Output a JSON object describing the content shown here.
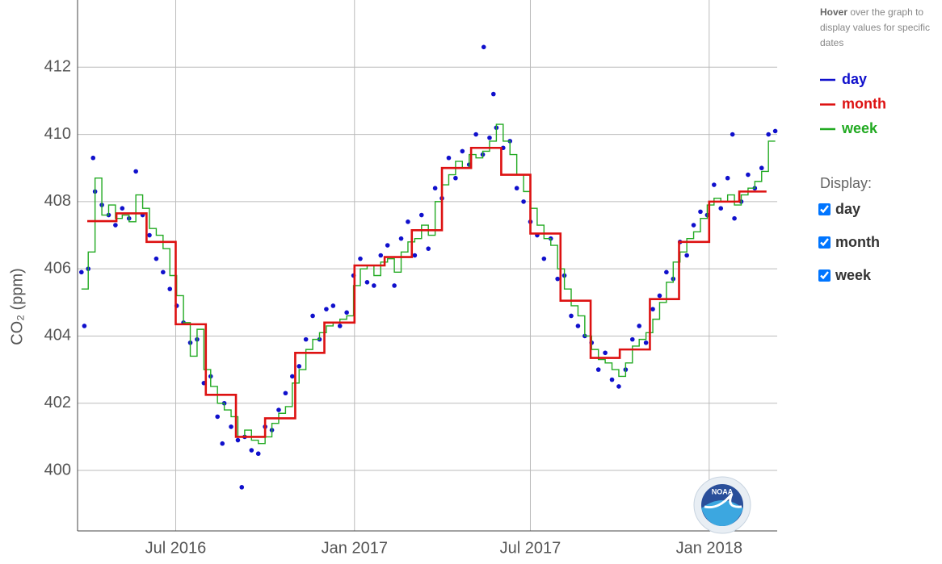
{
  "chart_data": {
    "type": "line",
    "y_label": "CO₂ (ppm)",
    "hint": {
      "bold": "Hover",
      "text": "over the graph to display values for specific dates"
    },
    "display_label": "Display:",
    "grid": true,
    "ylim": [
      398.2,
      414
    ],
    "yticks": [
      400,
      402,
      404,
      406,
      408,
      410,
      412
    ],
    "xlim": [
      "2016-03-22",
      "2018-03-12"
    ],
    "xticks": [
      {
        "value": "2016-07-01",
        "label": "Jul 2016"
      },
      {
        "value": "2017-01-01",
        "label": "Jan 2017"
      },
      {
        "value": "2017-07-01",
        "label": "Jul 2017"
      },
      {
        "value": "2018-01-01",
        "label": "Jan 2018"
      }
    ],
    "series": [
      {
        "name": "day",
        "color": "#1010cc",
        "style": "dots",
        "x": [
          "2016-03-26",
          "2016-04-02",
          "2016-04-09",
          "2016-04-16",
          "2016-04-23",
          "2016-04-30",
          "2016-05-07",
          "2016-05-14",
          "2016-05-21",
          "2016-05-28",
          "2016-06-04",
          "2016-06-11",
          "2016-06-18",
          "2016-06-25",
          "2016-07-02",
          "2016-07-09",
          "2016-07-16",
          "2016-07-23",
          "2016-07-30",
          "2016-08-06",
          "2016-08-13",
          "2016-08-20",
          "2016-08-27",
          "2016-09-03",
          "2016-09-10",
          "2016-09-17",
          "2016-09-24",
          "2016-10-01",
          "2016-10-08",
          "2016-10-15",
          "2016-10-22",
          "2016-10-29",
          "2016-11-05",
          "2016-11-12",
          "2016-11-19",
          "2016-11-26",
          "2016-12-03",
          "2016-12-10",
          "2016-12-17",
          "2016-12-24",
          "2016-12-31",
          "2017-01-07",
          "2017-01-14",
          "2017-01-21",
          "2017-01-28",
          "2017-02-04",
          "2017-02-11",
          "2017-02-18",
          "2017-02-25",
          "2017-03-04",
          "2017-03-11",
          "2017-03-18",
          "2017-03-25",
          "2017-04-01",
          "2017-04-08",
          "2017-04-15",
          "2017-04-22",
          "2017-04-29",
          "2017-05-06",
          "2017-05-13",
          "2017-05-20",
          "2017-05-27",
          "2017-06-03",
          "2017-06-10",
          "2017-06-17",
          "2017-06-24",
          "2017-07-01",
          "2017-07-08",
          "2017-07-15",
          "2017-07-22",
          "2017-07-29",
          "2017-08-05",
          "2017-08-12",
          "2017-08-19",
          "2017-08-26",
          "2017-09-02",
          "2017-09-09",
          "2017-09-16",
          "2017-09-23",
          "2017-09-30",
          "2017-10-07",
          "2017-10-14",
          "2017-10-21",
          "2017-10-28",
          "2017-11-04",
          "2017-11-11",
          "2017-11-18",
          "2017-11-25",
          "2017-12-02",
          "2017-12-09",
          "2017-12-16",
          "2017-12-23",
          "2017-12-30",
          "2018-01-06",
          "2018-01-13",
          "2018-01-20",
          "2018-01-27",
          "2018-02-03",
          "2018-02-10",
          "2018-02-17",
          "2018-02-24",
          "2018-03-03",
          "2016-03-29",
          "2016-04-07",
          "2016-08-18",
          "2016-09-07",
          "2017-05-14",
          "2017-05-24",
          "2018-01-25",
          "2018-03-10"
        ],
        "values": [
          405.9,
          406.0,
          408.3,
          407.9,
          407.6,
          407.3,
          407.8,
          407.5,
          408.9,
          407.6,
          407.0,
          406.3,
          405.9,
          405.4,
          404.9,
          404.4,
          403.8,
          403.9,
          402.6,
          402.8,
          401.6,
          402.0,
          401.3,
          400.9,
          401.0,
          400.6,
          400.5,
          401.3,
          401.2,
          401.8,
          402.3,
          402.8,
          403.1,
          403.9,
          404.6,
          403.9,
          404.8,
          404.9,
          404.3,
          404.7,
          405.8,
          406.3,
          405.6,
          405.5,
          406.4,
          406.7,
          405.5,
          406.9,
          407.4,
          406.4,
          407.6,
          406.6,
          408.4,
          408.1,
          409.3,
          408.7,
          409.5,
          409.1,
          410.0,
          409.4,
          409.9,
          410.2,
          409.6,
          409.8,
          408.4,
          408.0,
          407.4,
          407.0,
          406.3,
          406.9,
          405.7,
          405.8,
          404.6,
          404.3,
          404.0,
          403.8,
          403.0,
          403.5,
          402.7,
          402.5,
          403.0,
          403.9,
          404.3,
          403.8,
          404.8,
          405.2,
          405.9,
          405.7,
          406.8,
          406.4,
          407.3,
          407.7,
          407.6,
          408.5,
          407.8,
          408.7,
          407.5,
          408.0,
          408.8,
          408.4,
          409.0,
          410.0,
          404.3,
          409.3,
          400.8,
          399.5,
          412.6,
          411.2,
          410.0,
          410.1
        ]
      },
      {
        "name": "month",
        "color": "#dd1111",
        "style": "month-steps",
        "x": [
          "2016-04",
          "2016-05",
          "2016-06",
          "2016-07",
          "2016-08",
          "2016-09",
          "2016-10",
          "2016-11",
          "2016-12",
          "2017-01",
          "2017-02",
          "2017-03",
          "2017-04",
          "2017-05",
          "2017-06",
          "2017-07",
          "2017-08",
          "2017-09",
          "2017-10",
          "2017-11",
          "2017-12",
          "2018-01",
          "2018-02"
        ],
        "values": [
          407.42,
          407.65,
          406.8,
          404.35,
          402.25,
          401.0,
          401.55,
          403.5,
          404.4,
          406.1,
          406.35,
          407.15,
          409.0,
          409.6,
          408.8,
          407.05,
          405.05,
          403.35,
          403.6,
          405.1,
          406.8,
          408.0,
          408.3
        ]
      },
      {
        "name": "week",
        "color": "#22aa22",
        "style": "week-steps",
        "x": [
          "2016-03-26",
          "2016-04-02",
          "2016-04-09",
          "2016-04-16",
          "2016-04-23",
          "2016-04-30",
          "2016-05-07",
          "2016-05-14",
          "2016-05-21",
          "2016-05-28",
          "2016-06-04",
          "2016-06-11",
          "2016-06-18",
          "2016-06-25",
          "2016-07-02",
          "2016-07-09",
          "2016-07-16",
          "2016-07-23",
          "2016-07-30",
          "2016-08-06",
          "2016-08-13",
          "2016-08-20",
          "2016-08-27",
          "2016-09-03",
          "2016-09-10",
          "2016-09-17",
          "2016-09-24",
          "2016-10-01",
          "2016-10-08",
          "2016-10-15",
          "2016-10-22",
          "2016-10-29",
          "2016-11-05",
          "2016-11-12",
          "2016-11-19",
          "2016-11-26",
          "2016-12-03",
          "2016-12-10",
          "2016-12-17",
          "2016-12-24",
          "2016-12-31",
          "2017-01-07",
          "2017-01-14",
          "2017-01-21",
          "2017-01-28",
          "2017-02-04",
          "2017-02-11",
          "2017-02-18",
          "2017-02-25",
          "2017-03-04",
          "2017-03-11",
          "2017-03-18",
          "2017-03-25",
          "2017-04-01",
          "2017-04-08",
          "2017-04-15",
          "2017-04-22",
          "2017-04-29",
          "2017-05-06",
          "2017-05-13",
          "2017-05-20",
          "2017-05-27",
          "2017-06-03",
          "2017-06-10",
          "2017-06-17",
          "2017-06-24",
          "2017-07-01",
          "2017-07-08",
          "2017-07-15",
          "2017-07-22",
          "2017-07-29",
          "2017-08-05",
          "2017-08-12",
          "2017-08-19",
          "2017-08-26",
          "2017-09-02",
          "2017-09-09",
          "2017-09-16",
          "2017-09-23",
          "2017-09-30",
          "2017-10-07",
          "2017-10-14",
          "2017-10-21",
          "2017-10-28",
          "2017-11-04",
          "2017-11-11",
          "2017-11-18",
          "2017-11-25",
          "2017-12-02",
          "2017-12-09",
          "2017-12-16",
          "2017-12-23",
          "2017-12-30",
          "2018-01-06",
          "2018-01-13",
          "2018-01-20",
          "2018-01-27",
          "2018-02-03",
          "2018-02-10",
          "2018-02-17",
          "2018-02-24",
          "2018-03-03"
        ],
        "values": [
          405.4,
          406.5,
          408.7,
          407.6,
          407.9,
          407.5,
          407.6,
          407.4,
          408.2,
          407.8,
          407.2,
          407.0,
          406.6,
          405.8,
          405.2,
          404.4,
          403.4,
          404.2,
          403.0,
          402.5,
          402.0,
          401.8,
          401.6,
          401.0,
          401.2,
          400.9,
          400.8,
          401.0,
          401.4,
          401.7,
          401.9,
          402.6,
          403.0,
          403.6,
          403.9,
          404.1,
          404.3,
          404.4,
          404.5,
          404.6,
          405.5,
          406.0,
          406.1,
          405.8,
          406.2,
          406.3,
          405.9,
          406.5,
          406.8,
          406.9,
          407.3,
          407.0,
          408.0,
          408.5,
          408.8,
          409.2,
          409.0,
          409.4,
          409.3,
          409.5,
          409.8,
          410.3,
          409.8,
          409.4,
          408.8,
          408.3,
          407.8,
          407.3,
          406.9,
          406.7,
          406.0,
          405.4,
          404.9,
          404.6,
          404.0,
          403.6,
          403.3,
          403.2,
          403.0,
          402.8,
          403.2,
          403.7,
          403.9,
          404.1,
          404.5,
          405.0,
          405.6,
          406.2,
          406.5,
          406.9,
          407.1,
          407.5,
          407.9,
          408.1,
          408.0,
          408.2,
          407.9,
          408.2,
          408.4,
          408.6,
          408.9,
          409.8
        ]
      }
    ]
  }
}
